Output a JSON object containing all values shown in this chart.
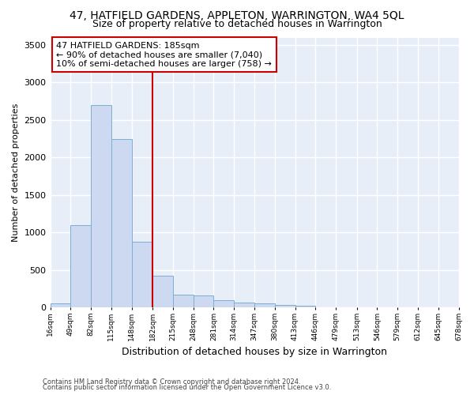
{
  "title": "47, HATFIELD GARDENS, APPLETON, WARRINGTON, WA4 5QL",
  "subtitle": "Size of property relative to detached houses in Warrington",
  "xlabel": "Distribution of detached houses by size in Warrington",
  "ylabel": "Number of detached properties",
  "bar_color": "#ccd9f0",
  "bar_edgecolor": "#7bafd4",
  "vline_x": 182,
  "vline_color": "#cc0000",
  "annotation_text": "47 HATFIELD GARDENS: 185sqm\n← 90% of detached houses are smaller (7,040)\n10% of semi-detached houses are larger (758) →",
  "annotation_box_color": "#ffffff",
  "annotation_box_edgecolor": "#cc0000",
  "footer1": "Contains HM Land Registry data © Crown copyright and database right 2024.",
  "footer2": "Contains public sector information licensed under the Open Government Licence v3.0.",
  "bins_left": [
    16,
    49,
    82,
    115,
    148,
    182,
    215,
    248,
    281,
    314,
    347,
    380,
    413,
    446,
    479,
    513,
    546,
    579,
    612,
    645
  ],
  "bin_width": 33,
  "bar_heights": [
    55,
    1100,
    2700,
    2250,
    875,
    420,
    175,
    165,
    95,
    65,
    55,
    35,
    25,
    0,
    0,
    0,
    0,
    0,
    0,
    0
  ],
  "ylim": [
    0,
    3600
  ],
  "yticks": [
    0,
    500,
    1000,
    1500,
    2000,
    2500,
    3000,
    3500
  ],
  "xlim": [
    16,
    678
  ],
  "background_color": "#e8eef8",
  "grid_color": "#ffffff",
  "title_fontsize": 10,
  "subtitle_fontsize": 9,
  "ylabel_fontsize": 8,
  "xlabel_fontsize": 9,
  "tick_labels": [
    "16sqm",
    "49sqm",
    "82sqm",
    "115sqm",
    "148sqm",
    "182sqm",
    "215sqm",
    "248sqm",
    "281sqm",
    "314sqm",
    "347sqm",
    "380sqm",
    "413sqm",
    "446sqm",
    "479sqm",
    "513sqm",
    "546sqm",
    "579sqm",
    "612sqm",
    "645sqm",
    "678sqm"
  ]
}
